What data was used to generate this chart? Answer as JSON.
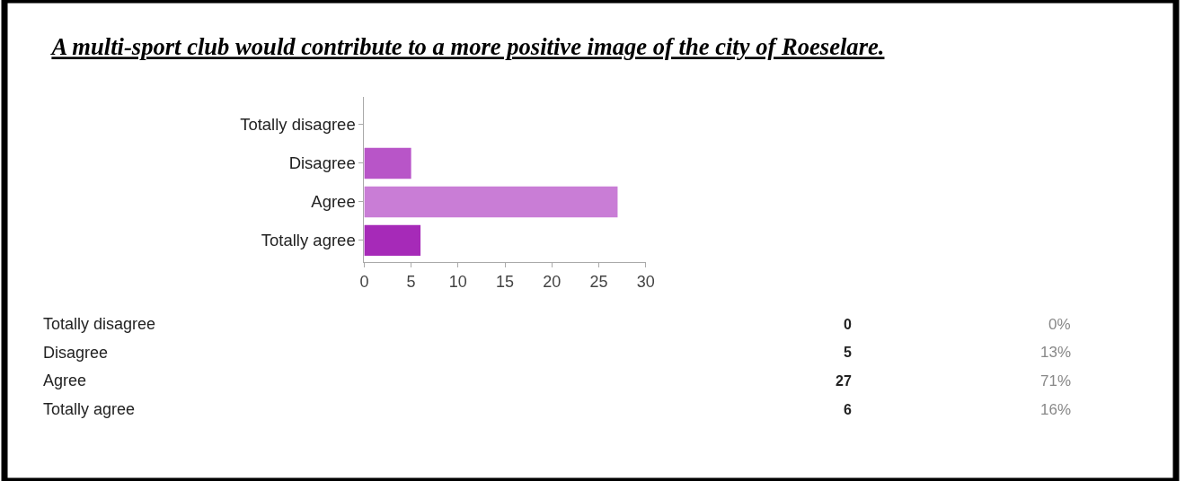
{
  "chart_data": {
    "type": "bar",
    "orientation": "horizontal",
    "title": "A multi-sport club would contribute to a more positive image of the city of Roeselare.",
    "categories": [
      "Totally disagree",
      "Disagree",
      "Agree",
      "Totally agree"
    ],
    "values": [
      0,
      5,
      27,
      6
    ],
    "colors": [
      null,
      "#b855c8",
      "#c97dd6",
      "#a62ab8"
    ],
    "xlim": [
      0,
      30
    ],
    "xticks": [
      0,
      5,
      10,
      15,
      20,
      25,
      30
    ],
    "annotations": [
      "0",
      "0%",
      "5",
      "13%",
      "27",
      "71%",
      "6",
      "16%"
    ]
  }
}
